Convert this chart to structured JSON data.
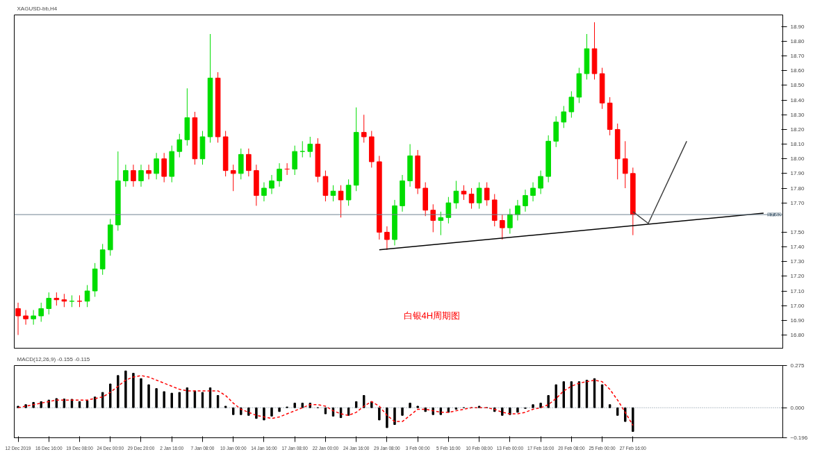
{
  "chart_data": [
    {
      "type": "candlestick",
      "title": "XAGUSD-bb,H4",
      "annotations": [
        "白银4H周期图"
      ],
      "categories": [
        null,
        null,
        null,
        null,
        null,
        null,
        null,
        null,
        null,
        null,
        null,
        null,
        null,
        null,
        null,
        null,
        null,
        null,
        null,
        null,
        null,
        null,
        null,
        null,
        null,
        null,
        null,
        null,
        null,
        null,
        null,
        null,
        null,
        null,
        null,
        null,
        null,
        null,
        null,
        null,
        null,
        null,
        null,
        null,
        null,
        null,
        null,
        null,
        null,
        null,
        null,
        null,
        null,
        null,
        null,
        null,
        null,
        null,
        null,
        null,
        null,
        null,
        null,
        null,
        null,
        null,
        null,
        null,
        null,
        null,
        null,
        null,
        null,
        null,
        null,
        null,
        null,
        null,
        null,
        null,
        null,
        null,
        null,
        null,
        null,
        null,
        null,
        null,
        null,
        null,
        null,
        null,
        null,
        null,
        null,
        null,
        null,
        null,
        null,
        null
      ],
      "ylim": [
        16.71,
        18.98
      ],
      "yticks": [
        {
          "value": 16.8,
          "label": "16.80"
        },
        {
          "value": 16.9,
          "label": "16.90"
        },
        {
          "value": 17.0,
          "label": "17.00"
        },
        {
          "value": 17.1,
          "label": "17.10"
        },
        {
          "value": 17.2,
          "label": "17.20"
        },
        {
          "value": 17.3,
          "label": "17.30"
        },
        {
          "value": 17.4,
          "label": "17.40"
        },
        {
          "value": 17.5,
          "label": "17.50"
        },
        {
          "value": 17.7,
          "label": "17.70"
        },
        {
          "value": 17.8,
          "label": "17.80"
        },
        {
          "value": 17.9,
          "label": "17.90"
        },
        {
          "value": 18.0,
          "label": "18.00"
        },
        {
          "value": 18.1,
          "label": "18.10"
        },
        {
          "value": 18.2,
          "label": "18.20"
        },
        {
          "value": 18.3,
          "label": "18.30"
        },
        {
          "value": 18.4,
          "label": "18.40"
        },
        {
          "value": 18.5,
          "label": "18.50"
        },
        {
          "value": 18.6,
          "label": "18.60"
        },
        {
          "value": 18.7,
          "label": "18.70"
        },
        {
          "value": 18.8,
          "label": "18.80"
        },
        {
          "value": 18.9,
          "label": "18.90"
        }
      ],
      "tick_labels": "y",
      "ref_lines": [
        {
          "axis": "y",
          "value": 17.62,
          "label": "17.62",
          "color": "#6e8190"
        }
      ],
      "series": [
        {
          "ohlc": [
            [
              16.98,
              17.02,
              16.8,
              16.93
            ],
            [
              16.93,
              16.97,
              16.87,
              16.91
            ],
            [
              16.91,
              16.97,
              16.87,
              16.93
            ],
            [
              16.93,
              17.02,
              16.89,
              16.98
            ],
            [
              16.98,
              17.09,
              16.94,
              17.05
            ],
            [
              17.05,
              17.09,
              17.0,
              17.04
            ],
            [
              17.04,
              17.08,
              16.99,
              17.03
            ],
            [
              17.03,
              17.07,
              16.99,
              17.03
            ],
            [
              17.03,
              17.07,
              16.99,
              17.03
            ],
            [
              17.03,
              17.14,
              16.99,
              17.1
            ],
            [
              17.1,
              17.29,
              17.06,
              17.25
            ],
            [
              17.25,
              17.42,
              17.21,
              17.38
            ],
            [
              17.38,
              17.59,
              17.34,
              17.55
            ],
            [
              17.55,
              18.05,
              17.51,
              17.85
            ],
            [
              17.85,
              17.96,
              17.81,
              17.92
            ],
            [
              17.92,
              17.96,
              17.81,
              17.85
            ],
            [
              17.85,
              17.96,
              17.81,
              17.92
            ],
            [
              17.92,
              17.96,
              17.86,
              17.9
            ],
            [
              17.9,
              18.04,
              17.86,
              18.0
            ],
            [
              18.0,
              18.04,
              17.84,
              17.88
            ],
            [
              17.88,
              18.09,
              17.84,
              18.05
            ],
            [
              18.05,
              18.17,
              18.01,
              18.13
            ],
            [
              18.13,
              18.48,
              18.09,
              18.28
            ],
            [
              18.28,
              18.32,
              17.96,
              18.0
            ],
            [
              18.0,
              18.19,
              17.96,
              18.15
            ],
            [
              18.15,
              18.85,
              18.11,
              18.55
            ],
            [
              18.55,
              18.59,
              18.11,
              18.15
            ],
            [
              18.15,
              18.19,
              17.88,
              17.92
            ],
            [
              17.92,
              17.96,
              17.78,
              17.9
            ],
            [
              17.9,
              18.07,
              17.86,
              18.03
            ],
            [
              18.03,
              18.07,
              17.88,
              17.92
            ],
            [
              17.92,
              17.96,
              17.68,
              17.75
            ],
            [
              17.75,
              17.84,
              17.71,
              17.8
            ],
            [
              17.8,
              17.89,
              17.76,
              17.85
            ],
            [
              17.85,
              17.97,
              17.81,
              17.93
            ],
            [
              17.93,
              17.97,
              17.89,
              17.93
            ],
            [
              17.93,
              18.09,
              17.89,
              18.05
            ],
            [
              18.05,
              18.12,
              18.01,
              18.05
            ],
            [
              18.05,
              18.15,
              18.01,
              18.1
            ],
            [
              18.1,
              18.14,
              17.84,
              17.88
            ],
            [
              17.88,
              17.92,
              17.71,
              17.75
            ],
            [
              17.75,
              17.82,
              17.71,
              17.78
            ],
            [
              17.78,
              17.82,
              17.6,
              17.72
            ],
            [
              17.72,
              17.86,
              17.68,
              17.82
            ],
            [
              17.82,
              18.35,
              17.78,
              18.18
            ],
            [
              18.18,
              18.3,
              18.11,
              18.15
            ],
            [
              18.15,
              18.19,
              17.94,
              17.98
            ],
            [
              17.98,
              18.02,
              17.45,
              17.5
            ],
            [
              17.5,
              17.54,
              17.38,
              17.45
            ],
            [
              17.45,
              17.72,
              17.41,
              17.68
            ],
            [
              17.68,
              17.89,
              17.64,
              17.85
            ],
            [
              17.85,
              18.1,
              17.81,
              18.02
            ],
            [
              18.02,
              18.06,
              17.76,
              17.8
            ],
            [
              17.8,
              17.84,
              17.61,
              17.65
            ],
            [
              17.65,
              17.69,
              17.5,
              17.58
            ],
            [
              17.58,
              17.64,
              17.48,
              17.6
            ],
            [
              17.6,
              17.74,
              17.56,
              17.7
            ],
            [
              17.7,
              17.85,
              17.66,
              17.78
            ],
            [
              17.78,
              17.82,
              17.72,
              17.76
            ],
            [
              17.76,
              17.8,
              17.66,
              17.7
            ],
            [
              17.7,
              17.84,
              17.66,
              17.8
            ],
            [
              17.8,
              17.84,
              17.68,
              17.72
            ],
            [
              17.72,
              17.76,
              17.54,
              17.58
            ],
            [
              17.58,
              17.62,
              17.45,
              17.53
            ],
            [
              17.53,
              17.66,
              17.49,
              17.62
            ],
            [
              17.62,
              17.72,
              17.58,
              17.68
            ],
            [
              17.68,
              17.79,
              17.64,
              17.75
            ],
            [
              17.75,
              17.84,
              17.71,
              17.8
            ],
            [
              17.8,
              17.92,
              17.76,
              17.88
            ],
            [
              17.88,
              18.16,
              17.84,
              18.12
            ],
            [
              18.12,
              18.29,
              18.08,
              18.25
            ],
            [
              18.25,
              18.36,
              18.21,
              18.32
            ],
            [
              18.32,
              18.46,
              18.28,
              18.42
            ],
            [
              18.42,
              18.62,
              18.38,
              18.58
            ],
            [
              18.58,
              18.85,
              18.54,
              18.75
            ],
            [
              18.75,
              18.93,
              18.54,
              18.58
            ],
            [
              18.58,
              18.62,
              18.34,
              18.38
            ],
            [
              18.38,
              18.42,
              18.16,
              18.2
            ],
            [
              18.2,
              18.24,
              17.86,
              18.0
            ],
            [
              18.0,
              18.12,
              17.8,
              17.9
            ],
            [
              17.9,
              17.94,
              17.48,
              17.62
            ],
            null,
            null,
            null,
            null,
            null,
            null,
            null,
            null,
            null,
            null,
            null,
            null,
            null,
            null,
            null,
            null,
            null,
            null,
            null
          ],
          "colors": [
            "#ff0000",
            "#ff0000",
            "#00dd00",
            "#00dd00",
            "#00dd00",
            "#ff0000",
            "#ff0000",
            "#00dd00",
            "#ff0000",
            "#00dd00",
            "#00dd00",
            "#00dd00",
            "#00dd00",
            "#00dd00",
            "#00dd00",
            "#ff0000",
            "#00dd00",
            "#ff0000",
            "#00dd00",
            "#ff0000",
            "#00dd00",
            "#00dd00",
            "#00dd00",
            "#ff0000",
            "#00dd00",
            "#00dd00",
            "#ff0000",
            "#ff0000",
            "#ff0000",
            "#00dd00",
            "#ff0000",
            "#ff0000",
            "#00dd00",
            "#00dd00",
            "#00dd00",
            "#ff0000",
            "#00dd00",
            "#00dd00",
            "#00dd00",
            "#ff0000",
            "#ff0000",
            "#00dd00",
            "#ff0000",
            "#00dd00",
            "#00dd00",
            "#ff0000",
            "#ff0000",
            "#ff0000",
            "#ff0000",
            "#00dd00",
            "#00dd00",
            "#00dd00",
            "#ff0000",
            "#ff0000",
            "#ff0000",
            "#00dd00",
            "#00dd00",
            "#00dd00",
            "#ff0000",
            "#ff0000",
            "#00dd00",
            "#ff0000",
            "#ff0000",
            "#ff0000",
            "#00dd00",
            "#00dd00",
            "#00dd00",
            "#00dd00",
            "#00dd00",
            "#00dd00",
            "#00dd00",
            "#00dd00",
            "#00dd00",
            "#00dd00",
            "#00dd00",
            "#ff0000",
            "#ff0000",
            "#ff0000",
            "#ff0000",
            "#ff0000",
            "#ff0000",
            null,
            null,
            null,
            null,
            null,
            null,
            null,
            null,
            null,
            null,
            null,
            null,
            null,
            null,
            null,
            null,
            null,
            null,
            null
          ]
        },
        {
          "type": "line",
          "color": "#000000",
          "values": [
            null,
            null,
            null,
            null,
            null,
            null,
            null,
            null,
            null,
            null,
            null,
            null,
            null,
            null,
            null,
            null,
            null,
            null,
            null,
            null,
            null,
            null,
            null,
            null,
            null,
            null,
            null,
            null,
            null,
            null,
            null,
            null,
            null,
            null,
            null,
            null,
            null,
            null,
            null,
            null,
            null,
            null,
            null,
            null,
            null,
            null,
            null,
            17.38,
            null,
            null,
            null,
            null,
            null,
            null,
            null,
            null,
            null,
            null,
            null,
            null,
            null,
            null,
            null,
            null,
            null,
            null,
            null,
            null,
            null,
            null,
            null,
            null,
            null,
            null,
            null,
            null,
            null,
            null,
            null,
            null,
            null,
            null,
            null,
            null,
            null,
            null,
            null,
            null,
            null,
            null,
            null,
            null,
            null,
            null,
            null,
            null,
            null,
            17.63,
            null,
            null
          ]
        },
        {
          "type": "line",
          "color": "#404040",
          "values": [
            null,
            null,
            null,
            null,
            null,
            null,
            null,
            null,
            null,
            null,
            null,
            null,
            null,
            null,
            null,
            null,
            null,
            null,
            null,
            null,
            null,
            null,
            null,
            null,
            null,
            null,
            null,
            null,
            null,
            null,
            null,
            null,
            null,
            null,
            null,
            null,
            null,
            null,
            null,
            null,
            null,
            null,
            null,
            null,
            null,
            null,
            null,
            null,
            null,
            null,
            null,
            null,
            null,
            null,
            null,
            null,
            null,
            null,
            null,
            null,
            null,
            null,
            null,
            null,
            null,
            null,
            null,
            null,
            null,
            null,
            null,
            null,
            null,
            null,
            null,
            null,
            null,
            null,
            null,
            null,
            17.64,
            null,
            17.56,
            null,
            null,
            null,
            null,
            18.12,
            null,
            null,
            null,
            null,
            null,
            null,
            null,
            null,
            null,
            null,
            null,
            null
          ]
        }
      ]
    },
    {
      "type": "bar",
      "title": "MACD(12,26,9) -0.155 -0.115",
      "categories": [
        "12 Dec 2019",
        null,
        null,
        null,
        "16 Dec 16:00",
        null,
        null,
        null,
        "19 Dec 08:00",
        null,
        null,
        null,
        "24 Dec 00:00",
        null,
        null,
        null,
        "29 Dec 20:00",
        null,
        null,
        null,
        "2 Jan 16:00",
        null,
        null,
        null,
        "7 Jan 08:00",
        null,
        null,
        null,
        "10 Jan 00:00",
        null,
        null,
        null,
        "14 Jan 16:00",
        null,
        null,
        null,
        "17 Jan 08:00",
        null,
        null,
        null,
        "22 Jan 00:00",
        null,
        null,
        null,
        "24 Jan 16:00",
        null,
        null,
        null,
        "29 Jan 08:00",
        null,
        null,
        null,
        "3 Feb 00:00",
        null,
        null,
        null,
        "5 Feb 16:00",
        null,
        null,
        null,
        "10 Feb 08:00",
        null,
        null,
        null,
        "13 Feb 00:00",
        null,
        null,
        null,
        "17 Feb 16:00",
        null,
        null,
        null,
        "20 Feb 08:00",
        null,
        null,
        null,
        "25 Feb 00:00",
        null,
        null,
        null,
        "27 Feb 16:00",
        null,
        null,
        null,
        null,
        null,
        null,
        null,
        null,
        null,
        null,
        null,
        null,
        null,
        null,
        null,
        null,
        null,
        null,
        null
      ],
      "ylim": [
        -0.196,
        0.275
      ],
      "yticks": [
        -0.196,
        {
          "value": 0,
          "label": "0.000"
        },
        0.275
      ],
      "ref_lines": [
        {
          "axis": "y",
          "value": 0,
          "color": "#6e8190",
          "line_style": "dotted"
        }
      ],
      "series": [
        {
          "color": "#000000",
          "values": [
            0.01,
            0.02,
            0.035,
            0.04,
            0.05,
            0.06,
            0.057,
            0.055,
            0.04,
            0.045,
            0.07,
            0.1,
            0.155,
            0.21,
            0.24,
            0.225,
            0.19,
            0.15,
            0.125,
            0.105,
            0.095,
            0.1,
            0.13,
            0.11,
            0.1,
            0.13,
            0.08,
            0.01,
            -0.045,
            -0.045,
            -0.05,
            -0.07,
            -0.08,
            -0.055,
            -0.025,
            0.005,
            0.03,
            0.03,
            0.03,
            0.0,
            -0.04,
            -0.055,
            -0.065,
            -0.05,
            0.04,
            0.08,
            0.04,
            -0.08,
            -0.13,
            -0.11,
            -0.05,
            0.03,
            0.01,
            -0.025,
            -0.045,
            -0.045,
            -0.03,
            -0.01,
            0.0,
            0.0,
            0.01,
            0.0,
            -0.025,
            -0.05,
            -0.045,
            -0.03,
            -0.005,
            0.02,
            0.03,
            0.08,
            0.15,
            0.17,
            0.17,
            0.17,
            0.18,
            0.19,
            0.15,
            0.02,
            -0.05,
            -0.09,
            -0.155,
            null,
            null,
            null,
            null,
            null,
            null,
            null,
            null,
            null,
            null,
            null,
            null,
            null,
            null,
            null,
            null,
            null,
            null,
            null
          ]
        },
        {
          "type": "line",
          "color": "#ff0000",
          "line_style": "dashed",
          "values": [
            0.0,
            0.01,
            0.02,
            0.03,
            0.04,
            0.05,
            0.05,
            0.05,
            0.05,
            0.05,
            0.06,
            0.07,
            0.1,
            0.14,
            0.18,
            0.2,
            0.21,
            0.2,
            0.18,
            0.16,
            0.14,
            0.12,
            0.11,
            0.11,
            0.11,
            0.11,
            0.11,
            0.08,
            0.03,
            -0.01,
            -0.03,
            -0.05,
            -0.06,
            -0.07,
            -0.06,
            -0.04,
            -0.02,
            0.0,
            0.02,
            0.02,
            0.01,
            -0.02,
            -0.04,
            -0.05,
            -0.03,
            0.01,
            0.04,
            0.01,
            -0.05,
            -0.09,
            -0.09,
            -0.05,
            -0.01,
            -0.01,
            -0.02,
            -0.03,
            -0.03,
            -0.02,
            -0.01,
            0.0,
            0.0,
            0.0,
            -0.01,
            -0.03,
            -0.04,
            -0.04,
            -0.03,
            -0.01,
            0.0,
            0.02,
            0.06,
            0.11,
            0.14,
            0.16,
            0.17,
            0.18,
            0.17,
            0.12,
            0.05,
            -0.03,
            -0.115,
            null,
            null,
            null,
            null,
            null,
            null,
            null,
            null,
            null,
            null,
            null,
            null,
            null,
            null,
            null,
            null,
            null,
            null,
            null
          ]
        }
      ]
    }
  ]
}
